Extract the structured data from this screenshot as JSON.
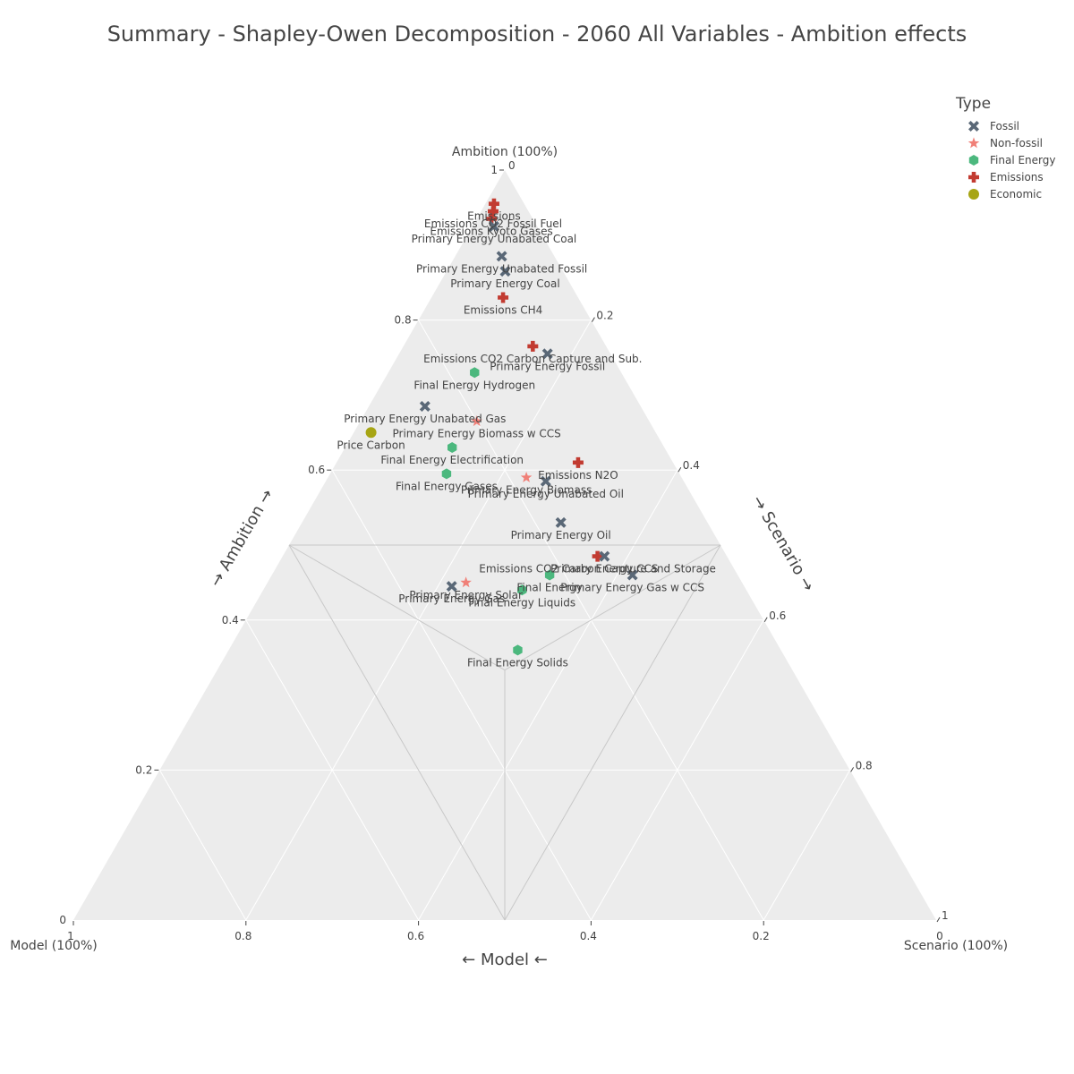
{
  "chart_data": {
    "type": "scatter",
    "subtype": "ternary",
    "title": "Summary - Shapley-Owen Decomposition - 2060 All Variables - Ambition effects",
    "axes": {
      "a": {
        "title": "Ambition",
        "corner_label": "Ambition (100%)",
        "ticks": [
          "0.2",
          "0.4",
          "0.6",
          "0.8",
          "1"
        ]
      },
      "b": {
        "title": "Model",
        "corner_label": "Model (100%)",
        "ticks": [
          "0.2",
          "0.4",
          "0.6",
          "0.8",
          "1"
        ]
      },
      "c": {
        "title": "Scenario",
        "corner_label": "Scenario (100%)",
        "ticks": [
          "0.2",
          "0.4",
          "0.6",
          "0.8",
          "1"
        ]
      },
      "zero_label": "0"
    },
    "grid": true,
    "legend": {
      "title": "Type",
      "position": "top-right",
      "entries": [
        {
          "name": "Fossil",
          "color": "#5a6877",
          "symbol": "x"
        },
        {
          "name": "Non-fossil",
          "color": "#f08078",
          "symbol": "star"
        },
        {
          "name": "Final Energy",
          "color": "#4cb87e",
          "symbol": "hexagon"
        },
        {
          "name": "Emissions",
          "color": "#c23b31",
          "symbol": "cross"
        },
        {
          "name": "Economic",
          "color": "#a7a514",
          "symbol": "circle"
        }
      ]
    },
    "points": [
      {
        "label": "Emissions",
        "type": "Emissions",
        "a": 0.955,
        "b": 0.035,
        "c": 0.01
      },
      {
        "label": "Emissions CO2 Fossil Fuel",
        "type": "Emissions",
        "a": 0.945,
        "b": 0.041,
        "c": 0.014
      },
      {
        "label": "Emissions Kyoto Gases",
        "type": "Emissions",
        "a": 0.935,
        "b": 0.048,
        "c": 0.017
      },
      {
        "label": "Primary Energy Unabated Coal",
        "type": "Fossil",
        "a": 0.925,
        "b": 0.05,
        "c": 0.025
      },
      {
        "label": "Primary Energy Unabated Fossil",
        "type": "Fossil",
        "a": 0.885,
        "b": 0.061,
        "c": 0.054
      },
      {
        "label": "Primary Energy Coal",
        "type": "Fossil",
        "a": 0.865,
        "b": 0.067,
        "c": 0.068
      },
      {
        "label": "Emissions CH4",
        "type": "Emissions",
        "a": 0.83,
        "b": 0.087,
        "c": 0.083
      },
      {
        "label": "Emissions CO2 Carbon Capture and Sub.",
        "type": "Emissions",
        "a": 0.765,
        "b": 0.085,
        "c": 0.15
      },
      {
        "label": "Primary Energy Fossil",
        "type": "Fossil",
        "a": 0.755,
        "b": 0.073,
        "c": 0.172
      },
      {
        "label": "Final Energy Hydrogen",
        "type": "Final Energy",
        "a": 0.73,
        "b": 0.17,
        "c": 0.1
      },
      {
        "label": "Primary Energy Unabated Gas",
        "type": "Fossil",
        "a": 0.685,
        "b": 0.25,
        "c": 0.065
      },
      {
        "label": "Primary Energy Biomass w CCS",
        "type": "Non-fossil",
        "a": 0.665,
        "b": 0.2,
        "c": 0.135
      },
      {
        "label": "Price Carbon",
        "type": "Economic",
        "a": 0.65,
        "b": 0.33,
        "c": 0.02
      },
      {
        "label": "Final Energy Electrification",
        "type": "Final Energy",
        "a": 0.63,
        "b": 0.246,
        "c": 0.124
      },
      {
        "label": "Emissions N2O",
        "type": "Emissions",
        "a": 0.61,
        "b": 0.11,
        "c": 0.28
      },
      {
        "label": "Final Energy Gases",
        "type": "Final Energy",
        "a": 0.595,
        "b": 0.27,
        "c": 0.135
      },
      {
        "label": "Primary Energy Biomass",
        "type": "Non-fossil",
        "a": 0.59,
        "b": 0.18,
        "c": 0.23
      },
      {
        "label": "Primary Energy Unabated Oil",
        "type": "Fossil",
        "a": 0.585,
        "b": 0.16,
        "c": 0.255
      },
      {
        "label": "Primary Energy Oil",
        "type": "Fossil",
        "a": 0.53,
        "b": 0.17,
        "c": 0.3
      },
      {
        "label": "Emissions CO2 Carbon Capture and Storage",
        "type": "Emissions",
        "a": 0.485,
        "b": 0.15,
        "c": 0.365
      },
      {
        "label": "Primary Energy CCS",
        "type": "Fossil",
        "a": 0.485,
        "b": 0.142,
        "c": 0.373
      },
      {
        "label": "Primary Energy Gas w CCS",
        "type": "Fossil",
        "a": 0.46,
        "b": 0.122,
        "c": 0.418
      },
      {
        "label": "Final Energy",
        "type": "Final Energy",
        "a": 0.46,
        "b": 0.218,
        "c": 0.322
      },
      {
        "label": "Primary Energy Gas",
        "type": "Fossil",
        "a": 0.445,
        "b": 0.339,
        "c": 0.216
      },
      {
        "label": "Primary Energy Solar",
        "type": "Non-fossil",
        "a": 0.45,
        "b": 0.32,
        "c": 0.23
      },
      {
        "label": "Final Energy Liquids",
        "type": "Final Energy",
        "a": 0.44,
        "b": 0.26,
        "c": 0.3
      },
      {
        "label": "Final Energy Solids",
        "type": "Final Energy",
        "a": 0.36,
        "b": 0.305,
        "c": 0.335
      }
    ]
  }
}
